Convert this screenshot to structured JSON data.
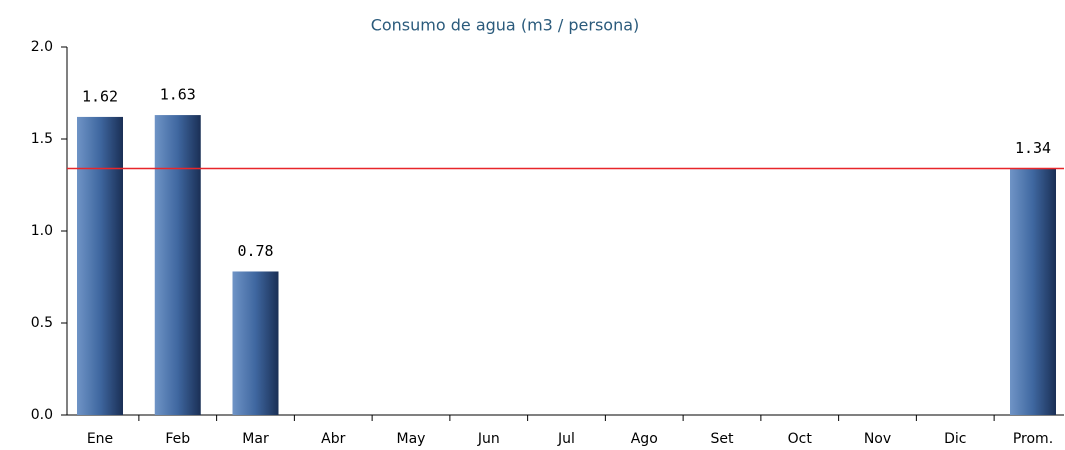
{
  "chart_data": {
    "type": "bar",
    "title": "Consumo de agua (m3 / persona)",
    "categories": [
      "Ene",
      "Feb",
      "Mar",
      "Abr",
      "May",
      "Jun",
      "Jul",
      "Ago",
      "Set",
      "Oct",
      "Nov",
      "Dic",
      "Prom."
    ],
    "values": [
      1.62,
      1.63,
      0.78,
      null,
      null,
      null,
      null,
      null,
      null,
      null,
      null,
      null,
      1.34
    ],
    "color": "#4a72a8",
    "ylim": [
      0,
      2
    ],
    "yticks": [
      {
        "value": 0,
        "label": "0.0"
      },
      {
        "value": 0.5,
        "label": "0.5"
      },
      {
        "value": 1,
        "label": "1.0"
      },
      {
        "value": 1.5,
        "label": "1.5"
      },
      {
        "value": 2,
        "label": "2.0"
      }
    ],
    "reference_line": {
      "value": 1.34,
      "color": "#e8262a"
    },
    "grid": false
  }
}
